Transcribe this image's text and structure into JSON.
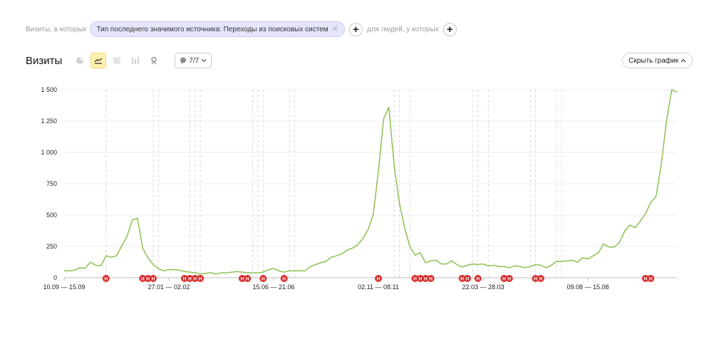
{
  "filters": {
    "prefix": "Визиты, в которых",
    "chip_label": "Тип последнего значимого источника: Переходы из поисковых систем",
    "people_label": "для людей, у которых"
  },
  "toolbar": {
    "title": "Визиты",
    "annotations_count": "7/7",
    "hide_chart_label": "Скрыть график"
  },
  "colors": {
    "line": "#8cc152",
    "marker": "#d62f2f",
    "chip_bg": "#e5e6fb",
    "active_btn": "#fdf1b0"
  },
  "icons": [
    "pie-chart-icon",
    "line-chart-icon",
    "stacked-area-icon",
    "bar-chart-icon",
    "map-pin-icon",
    "comment-icon",
    "chevron-down-icon",
    "close-icon",
    "plus-icon"
  ],
  "chart_data": {
    "type": "line",
    "ylim": [
      0,
      1500
    ],
    "yticks": [
      0,
      250,
      500,
      750,
      1000,
      1250,
      1500
    ],
    "ytick_labels": [
      "0",
      "250",
      "500",
      "750",
      "1 000",
      "1 250",
      "1 500"
    ],
    "x_tick_labels": [
      "10.09 — 15.09",
      "27.01 — 02.02",
      "15.06 — 21.06",
      "02.11 — 08.11",
      "22.03 — 28.03",
      "09.08 — 15.08"
    ],
    "x_tick_indices": [
      0,
      20,
      40,
      60,
      80,
      100
    ],
    "series": [
      {
        "values": [
          55,
          55,
          60,
          80,
          75,
          125,
          100,
          95,
          175,
          165,
          175,
          255,
          330,
          460,
          475,
          235,
          160,
          105,
          75,
          55,
          65,
          65,
          60,
          50,
          45,
          40,
          30,
          35,
          40,
          30,
          40,
          40,
          45,
          50,
          45,
          40,
          40,
          40,
          45,
          65,
          75,
          55,
          45,
          55,
          55,
          55,
          55,
          90,
          105,
          120,
          130,
          165,
          175,
          190,
          220,
          235,
          260,
          310,
          380,
          500,
          850,
          1270,
          1360,
          900,
          600,
          400,
          250,
          180,
          200,
          120,
          135,
          140,
          110,
          110,
          135,
          105,
          85,
          100,
          110,
          105,
          110,
          95,
          100,
          90,
          90,
          80,
          95,
          90,
          80,
          90,
          105,
          100,
          80,
          100,
          130,
          130,
          135,
          140,
          125,
          160,
          150,
          175,
          200,
          270,
          245,
          245,
          280,
          370,
          420,
          400,
          450,
          510,
          600,
          650,
          900,
          1250,
          1500,
          1480
        ]
      }
    ],
    "annotation_marker_label": "H"
  }
}
